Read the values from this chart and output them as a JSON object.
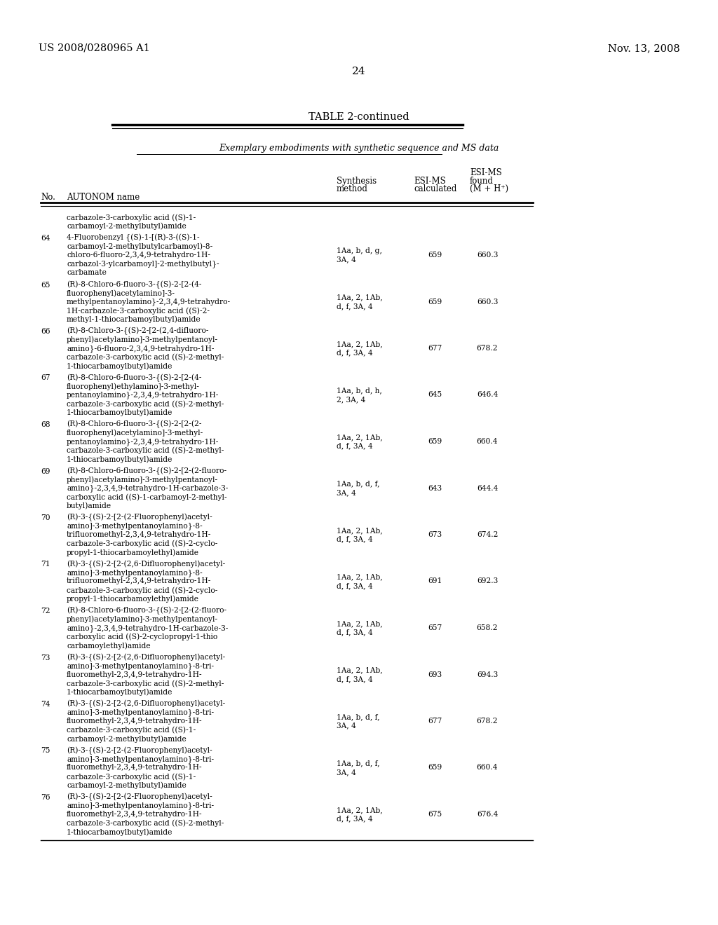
{
  "header_left": "US 2008/0280965 A1",
  "header_right": "Nov. 13, 2008",
  "page_number": "24",
  "table_title": "TABLE 2-continued",
  "table_subtitle": "Exemplary embodiments with synthetic sequence and MS data",
  "rows": [
    {
      "no": "",
      "name": "carbazole-3-carboxylic acid ((S)-1-\ncarbamoyl-2-methylbutyl)amide",
      "synthesis": "",
      "esi_calc": "",
      "esi_found": ""
    },
    {
      "no": "64",
      "name": "4-Fluorobenzyl {(S)-1-[(R)-3-((S)-1-\ncarbamoyl-2-methylbutylcarbamoyl)-8-\nchloro-6-fluoro-2,3,4,9-tetrahydro-1H-\ncarbazol-3-ylcarbamoyl]-2-methylbutyl}-\ncarbamate",
      "synthesis": "1Aa, b, d, g,\n3A, 4",
      "esi_calc": "659",
      "esi_found": "660.3"
    },
    {
      "no": "65",
      "name": "(R)-8-Chloro-6-fluoro-3-{(S)-2-[2-(4-\nfluorophenyl)acetylamino]-3-\nmethylpentanoylamino}-2,3,4,9-tetrahydro-\n1H-carbazole-3-carboxylic acid ((S)-2-\nmethyl-1-thiocarbamoylbutyl)amide",
      "synthesis": "1Aa, 2, 1Ab,\nd, f, 3A, 4",
      "esi_calc": "659",
      "esi_found": "660.3"
    },
    {
      "no": "66",
      "name": "(R)-8-Chloro-3-{(S)-2-[2-(2,4-difluoro-\nphenyl)acetylamino]-3-methylpentanoyl-\namino}-6-fluoro-2,3,4,9-tetrahydro-1H-\ncarbazole-3-carboxylic acid ((S)-2-methyl-\n1-thiocarbamoylbutyl)amide",
      "synthesis": "1Aa, 2, 1Ab,\nd, f, 3A, 4",
      "esi_calc": "677",
      "esi_found": "678.2"
    },
    {
      "no": "67",
      "name": "(R)-8-Chloro-6-fluoro-3-{(S)-2-[2-(4-\nfluorophenyl)ethylamino]-3-methyl-\npentanoylamino}-2,3,4,9-tetrahydro-1H-\ncarbazole-3-carboxylic acid ((S)-2-methyl-\n1-thiocarbamoylbutyl)amide",
      "synthesis": "1Aa, b, d, h,\n2, 3A, 4",
      "esi_calc": "645",
      "esi_found": "646.4"
    },
    {
      "no": "68",
      "name": "(R)-8-Chloro-6-fluoro-3-{(S)-2-[2-(2-\nfluorophenyl)acetylamino]-3-methyl-\npentanoylamino}-2,3,4,9-tetrahydro-1H-\ncarbazole-3-carboxylic acid ((S)-2-methyl-\n1-thiocarbamoylbutyl)amide",
      "synthesis": "1Aa, 2, 1Ab,\nd, f, 3A, 4",
      "esi_calc": "659",
      "esi_found": "660.4"
    },
    {
      "no": "69",
      "name": "(R)-8-Chloro-6-fluoro-3-{(S)-2-[2-(2-fluoro-\nphenyl)acetylamino]-3-methylpentanoyl-\namino}-2,3,4,9-tetrahydro-1H-carbazole-3-\ncarboxylic acid ((S)-1-carbamoyl-2-methyl-\nbutyl)amide",
      "synthesis": "1Aa, b, d, f,\n3A, 4",
      "esi_calc": "643",
      "esi_found": "644.4"
    },
    {
      "no": "70",
      "name": "(R)-3-{(S)-2-[2-(2-Fluorophenyl)acetyl-\namino]-3-methylpentanoylamino}-8-\ntrifluoromethyl-2,3,4,9-tetrahydro-1H-\ncarbazole-3-carboxylic acid ((S)-2-cyclo-\npropyl-1-thiocarbamoylethyl)amide",
      "synthesis": "1Aa, 2, 1Ab,\nd, f, 3A, 4",
      "esi_calc": "673",
      "esi_found": "674.2"
    },
    {
      "no": "71",
      "name": "(R)-3-{(S)-2-[2-(2,6-Difluorophenyl)acetyl-\namino]-3-methylpentanoylamino}-8-\ntrifluoromethyl-2,3,4,9-tetrahydro-1H-\ncarbazole-3-carboxylic acid ((S)-2-cyclo-\npropyl-1-thiocarbamoylethyl)amide",
      "synthesis": "1Aa, 2, 1Ab,\nd, f, 3A, 4",
      "esi_calc": "691",
      "esi_found": "692.3"
    },
    {
      "no": "72",
      "name": "(R)-8-Chloro-6-fluoro-3-{(S)-2-[2-(2-fluoro-\nphenyl)acetylamino]-3-methylpentanoyl-\namino}-2,3,4,9-tetrahydro-1H-carbazole-3-\ncarboxylic acid ((S)-2-cyclopropyl-1-thio\ncarbamoylethyl)amide",
      "synthesis": "1Aa, 2, 1Ab,\nd, f, 3A, 4",
      "esi_calc": "657",
      "esi_found": "658.2"
    },
    {
      "no": "73",
      "name": "(R)-3-{(S)-2-[2-(2,6-Difluorophenyl)acetyl-\namino]-3-methylpentanoylamino}-8-tri-\nfluoromethyl-2,3,4,9-tetrahydro-1H-\ncarbazole-3-carboxylic acid ((S)-2-methyl-\n1-thiocarbamoylbutyl)amide",
      "synthesis": "1Aa, 2, 1Ab,\nd, f, 3A, 4",
      "esi_calc": "693",
      "esi_found": "694.3"
    },
    {
      "no": "74",
      "name": "(R)-3-{(S)-2-[2-(2,6-Difluorophenyl)acetyl-\namino]-3-methylpentanoylamino}-8-tri-\nfluoromethyl-2,3,4,9-tetrahydro-1H-\ncarbazole-3-carboxylic acid ((S)-1-\ncarbamoyl-2-methylbutyl)amide",
      "synthesis": "1Aa, b, d, f,\n3A, 4",
      "esi_calc": "677",
      "esi_found": "678.2"
    },
    {
      "no": "75",
      "name": "(R)-3-{(S)-2-[2-(2-Fluorophenyl)acetyl-\namino]-3-methylpentanoylamino}-8-tri-\nfluoromethyl-2,3,4,9-tetrahydro-1H-\ncarbazole-3-carboxylic acid ((S)-1-\ncarbamoyl-2-methylbutyl)amide",
      "synthesis": "1Aa, b, d, f,\n3A, 4",
      "esi_calc": "659",
      "esi_found": "660.4"
    },
    {
      "no": "76",
      "name": "(R)-3-{(S)-2-[2-(2-Fluorophenyl)acetyl-\namino]-3-methylpentanoylamino}-8-tri-\nfluoromethyl-2,3,4,9-tetrahydro-1H-\ncarbazole-3-carboxylic acid ((S)-2-methyl-\n1-thiocarbamoylbutyl)amide",
      "synthesis": "1Aa, 2, 1Ab,\nd, f, 3A, 4",
      "esi_calc": "675",
      "esi_found": "676.4"
    }
  ],
  "bg_color": "#ffffff",
  "text_color": "#000000"
}
